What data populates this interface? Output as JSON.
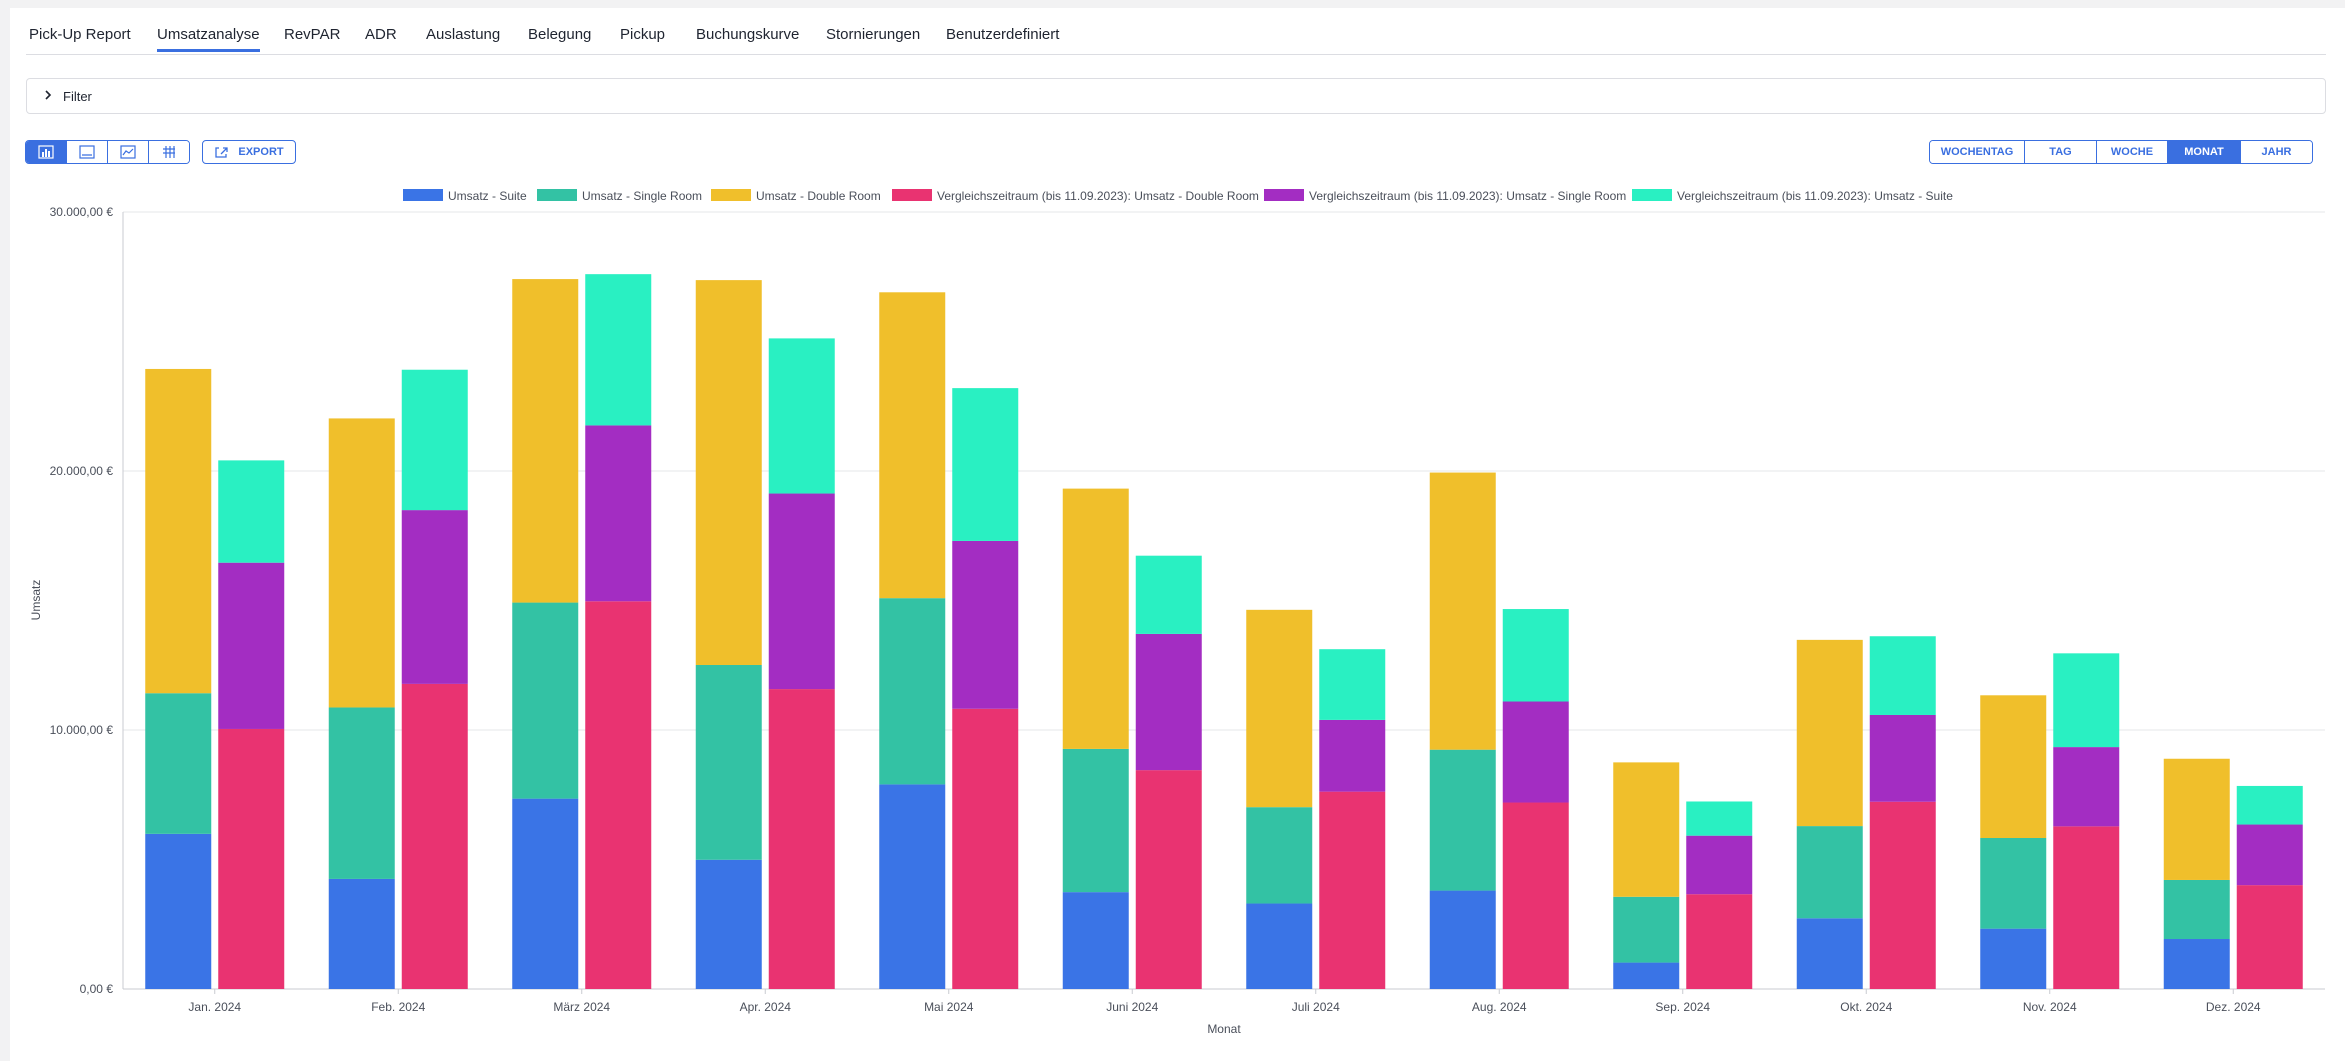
{
  "tabs": [
    {
      "label": "Pick-Up Report",
      "active": false
    },
    {
      "label": "Umsatzanalyse",
      "active": true
    },
    {
      "label": "RevPAR",
      "active": false
    },
    {
      "label": "ADR",
      "active": false
    },
    {
      "label": "Auslastung",
      "active": false
    },
    {
      "label": "Belegung",
      "active": false
    },
    {
      "label": "Pickup",
      "active": false
    },
    {
      "label": "Buchungskurve",
      "active": false
    },
    {
      "label": "Stornierungen",
      "active": false
    },
    {
      "label": "Benutzerdefiniert",
      "active": false
    }
  ],
  "filter": {
    "label": "Filter",
    "icon": "chevron-right-icon"
  },
  "toolbar": {
    "view_buttons": [
      {
        "icon": "bar-chart-icon",
        "active": true
      },
      {
        "icon": "line-chart-icon",
        "active": false
      },
      {
        "icon": "area-chart-icon",
        "active": false
      },
      {
        "icon": "table-icon",
        "active": false
      }
    ],
    "export_label": "EXPORT",
    "export_icon": "export-icon"
  },
  "period_buttons": [
    {
      "label": "WOCHENTAG",
      "active": false
    },
    {
      "label": "TAG",
      "active": false
    },
    {
      "label": "WOCHE",
      "active": false
    },
    {
      "label": "MONAT",
      "active": true
    },
    {
      "label": "JAHR",
      "active": false
    }
  ],
  "colors": {
    "accent": "#3a6fe0",
    "suite": "#3a74e6",
    "single": "#33c2a4",
    "double": "#f0bf2b",
    "cmp_double": "#e93371",
    "cmp_single": "#a32dc2",
    "cmp_suite": "#29f0c2"
  },
  "chart_data": {
    "type": "bar",
    "stacked": true,
    "xlabel": "Monat",
    "ylabel": "Umsatz",
    "ylim": [
      0,
      30000
    ],
    "yticks": [
      0,
      10000,
      20000,
      30000
    ],
    "ytick_labels": [
      "0,00 €",
      "10.000,00 €",
      "20.000,00 €",
      "30.000,00 €"
    ],
    "grid": true,
    "legend_position": "top",
    "categories": [
      "Jan. 2024",
      "Feb. 2024",
      "März 2024",
      "Apr. 2024",
      "Mai 2024",
      "Juni 2024",
      "Juli 2024",
      "Aug. 2024",
      "Sep. 2024",
      "Okt. 2024",
      "Nov. 2024",
      "Dez. 2024"
    ],
    "series": [
      {
        "name": "Umsatz - Suite",
        "stack": "current",
        "color": "#3a74e6",
        "values": [
          5990,
          4250,
          7350,
          4990,
          7900,
          3740,
          3300,
          3800,
          1020,
          2730,
          2330,
          1930
        ]
      },
      {
        "name": "Umsatz - Single Room",
        "stack": "current",
        "color": "#33c2a4",
        "values": [
          5430,
          6620,
          7570,
          7520,
          7190,
          5530,
          3720,
          5440,
          2540,
          3560,
          3500,
          2280
        ]
      },
      {
        "name": "Umsatz - Double Room",
        "stack": "current",
        "color": "#f0bf2b",
        "values": [
          12520,
          11160,
          12490,
          14860,
          11810,
          10050,
          7620,
          10700,
          5190,
          7190,
          5510,
          4680
        ]
      },
      {
        "name": "Vergleichszeitraum (bis 11.09.2023): Umsatz - Double Room",
        "stack": "compare",
        "color": "#e93371",
        "values": [
          10040,
          11780,
          14970,
          11580,
          10820,
          8450,
          7620,
          7200,
          3660,
          7230,
          6280,
          4010
        ]
      },
      {
        "name": "Vergleichszeitraum (bis 11.09.2023): Umsatz - Single Room",
        "stack": "compare",
        "color": "#a32dc2",
        "values": [
          6420,
          6710,
          6790,
          7550,
          6480,
          5260,
          2770,
          3900,
          2260,
          3350,
          3060,
          2340
        ]
      },
      {
        "name": "Vergleichszeitraum (bis 11.09.2023): Umsatz - Suite",
        "stack": "compare",
        "color": "#29f0c2",
        "values": [
          3950,
          5420,
          5840,
          5990,
          5900,
          3020,
          2730,
          3570,
          1320,
          3040,
          3620,
          1490
        ]
      }
    ]
  }
}
